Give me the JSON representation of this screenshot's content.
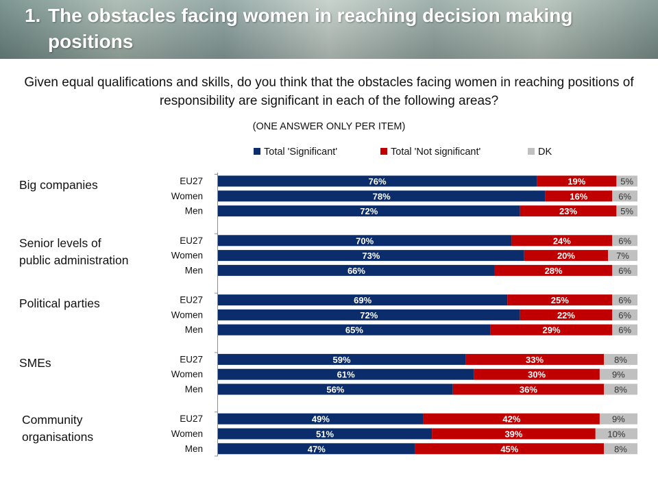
{
  "slide": {
    "title_number": "1.",
    "title_text": "The obstacles facing women in reaching decision making positions",
    "question": "Given equal qualifications and skills, do you think that the obstacles facing women in reaching positions of responsibility are significant in each of the following areas?",
    "instruction": "(ONE ANSWER ONLY PER ITEM)"
  },
  "chart_data": {
    "type": "bar",
    "orientation": "horizontal",
    "stacked": true,
    "xlim": [
      0,
      100
    ],
    "grid": false,
    "legend_position": "top",
    "series": [
      {
        "name": "Total 'Significant'",
        "color": "#0c2d6b"
      },
      {
        "name": "Total 'Not significant'",
        "color": "#c00000"
      },
      {
        "name": "DK",
        "color": "#c0c0c0"
      }
    ],
    "groups": [
      {
        "label": "Big companies",
        "rows": [
          {
            "label": "EU27",
            "values": [
              76,
              19,
              5
            ]
          },
          {
            "label": "Women",
            "values": [
              78,
              16,
              6
            ]
          },
          {
            "label": "Men",
            "values": [
              72,
              23,
              5
            ]
          }
        ]
      },
      {
        "label": "Senior levels of public administration",
        "rows": [
          {
            "label": "EU27",
            "values": [
              70,
              24,
              6
            ]
          },
          {
            "label": "Women",
            "values": [
              73,
              20,
              7
            ]
          },
          {
            "label": "Men",
            "values": [
              66,
              28,
              6
            ]
          }
        ]
      },
      {
        "label": "Political parties",
        "rows": [
          {
            "label": "EU27",
            "values": [
              69,
              25,
              6
            ]
          },
          {
            "label": "Women",
            "values": [
              72,
              22,
              6
            ]
          },
          {
            "label": "Men",
            "values": [
              65,
              29,
              6
            ]
          }
        ]
      },
      {
        "label": "SMEs",
        "rows": [
          {
            "label": "EU27",
            "values": [
              59,
              33,
              8
            ]
          },
          {
            "label": "Women",
            "values": [
              61,
              30,
              9
            ]
          },
          {
            "label": "Men",
            "values": [
              56,
              36,
              8
            ]
          }
        ]
      },
      {
        "label": "Community organisations",
        "rows": [
          {
            "label": "EU27",
            "values": [
              49,
              42,
              9
            ]
          },
          {
            "label": "Women",
            "values": [
              51,
              39,
              10
            ]
          },
          {
            "label": "Men",
            "values": [
              47,
              45,
              8
            ]
          }
        ]
      }
    ]
  }
}
